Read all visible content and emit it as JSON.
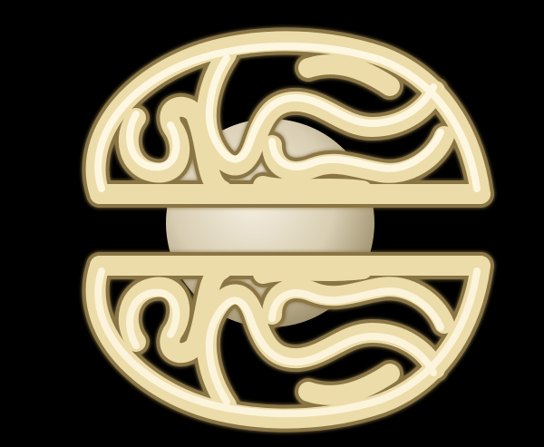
{
  "scene": {
    "subject": "brain-shaped-tube-sculpture",
    "colors": {
      "background": "#000000",
      "tube_highlight": "#fffbe8",
      "tube_mid": "#f3e6b8",
      "tube_shadow": "#a58e56",
      "core_sphere_light": "#efe7d4",
      "core_sphere_dark": "#b8ab8a"
    }
  }
}
